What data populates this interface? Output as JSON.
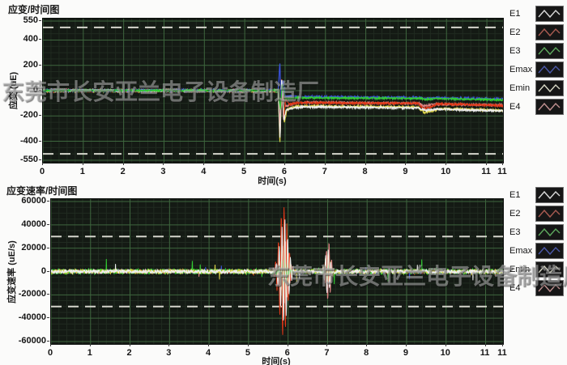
{
  "watermark": {
    "text": "东莞市长安亚兰电子设备制造厂"
  },
  "colors": {
    "page_bg": "#fbfbfa",
    "plot_bg": "#141a14",
    "grid_major": "#3e663e",
    "grid_minor": "#202b20",
    "ref_line": "#d5d5cc",
    "tick_text": "#161616"
  },
  "legend": {
    "items": [
      {
        "label": "E1",
        "color": "#d9d9d9"
      },
      {
        "label": "E2",
        "color": "#a85a50"
      },
      {
        "label": "E3",
        "color": "#5da85d"
      },
      {
        "label": "Emax",
        "color": "#4a58a8"
      },
      {
        "label": "Emin",
        "color": "#d6d6c4"
      },
      {
        "label": "E4",
        "color": "#c09090"
      }
    ]
  },
  "chart_data": [
    {
      "type": "line",
      "title": "应变/时间图",
      "xlabel": "时间(s)",
      "ylabel": "应变 (uE)",
      "xlim": [
        0,
        11.4
      ],
      "ylim": [
        -550,
        550
      ],
      "xticks": [
        0,
        1,
        2,
        3,
        4,
        5,
        6,
        7,
        8,
        9,
        10,
        11
      ],
      "edge_tick_label": "11",
      "yticks": [
        550,
        400,
        200,
        0,
        -200,
        -400,
        -550
      ],
      "x_minor_step": 0.2,
      "y_minor_step": 50,
      "ref_lines": [
        500,
        -500
      ],
      "grid": true,
      "legend_position": "right",
      "series": [
        {
          "name": "Emin",
          "color": "#d8d048",
          "noise": 9,
          "keypoints": [
            [
              0,
              -2
            ],
            [
              5.83,
              -2
            ],
            [
              5.87,
              -430
            ],
            [
              5.92,
              60
            ],
            [
              5.98,
              -255
            ],
            [
              6.05,
              -150
            ],
            [
              6.3,
              -122
            ],
            [
              8,
              -126
            ],
            [
              9.3,
              -132
            ],
            [
              9.45,
              -172
            ],
            [
              9.65,
              -158
            ],
            [
              9.85,
              -142
            ],
            [
              11.4,
              -157
            ]
          ]
        },
        {
          "name": "E4",
          "color": "#dc8282",
          "noise": 8,
          "keypoints": [
            [
              0,
              0
            ],
            [
              5.83,
              0
            ],
            [
              5.88,
              -250
            ],
            [
              5.93,
              30
            ],
            [
              6.0,
              -125
            ],
            [
              6.3,
              -92
            ],
            [
              8,
              -97
            ],
            [
              9.3,
              -100
            ],
            [
              9.45,
              -122
            ],
            [
              9.7,
              -106
            ],
            [
              11.4,
              -114
            ]
          ]
        },
        {
          "name": "E2",
          "color": "#e03818",
          "noise": 8,
          "keypoints": [
            [
              0,
              0
            ],
            [
              5.83,
              0
            ],
            [
              5.875,
              -380
            ],
            [
              5.91,
              100
            ],
            [
              5.96,
              -230
            ],
            [
              6.02,
              -70
            ],
            [
              6.1,
              -108
            ],
            [
              6.3,
              -95
            ],
            [
              8,
              -99
            ],
            [
              9.3,
              -101
            ],
            [
              9.42,
              -142
            ],
            [
              9.6,
              -133
            ],
            [
              9.78,
              -104
            ],
            [
              11.4,
              -119
            ]
          ]
        },
        {
          "name": "E1",
          "color": "#ededed",
          "noise": 8,
          "keypoints": [
            [
              0,
              0
            ],
            [
              5.83,
              0
            ],
            [
              5.875,
              -400
            ],
            [
              5.915,
              120
            ],
            [
              5.965,
              -240
            ],
            [
              6.03,
              -152
            ],
            [
              6.2,
              -136
            ],
            [
              6.5,
              -129
            ],
            [
              8,
              -133
            ],
            [
              9.3,
              -139
            ],
            [
              9.5,
              -156
            ],
            [
              9.75,
              -146
            ],
            [
              11.4,
              -161
            ]
          ]
        },
        {
          "name": "Emax",
          "color": "#3a52da",
          "noise": 9,
          "keypoints": [
            [
              0,
              2
            ],
            [
              5.83,
              2
            ],
            [
              5.87,
              235
            ],
            [
              5.9,
              -80
            ],
            [
              5.95,
              85
            ],
            [
              6.0,
              -42
            ],
            [
              6.3,
              -49
            ],
            [
              8,
              -53
            ],
            [
              9.3,
              -56
            ],
            [
              9.5,
              -62
            ],
            [
              9.7,
              -58
            ],
            [
              11.4,
              -67
            ]
          ]
        },
        {
          "name": "E3",
          "color": "#32cc32",
          "noise": 7,
          "keypoints": [
            [
              0,
              1
            ],
            [
              5.83,
              1
            ],
            [
              5.88,
              -150
            ],
            [
              5.93,
              55
            ],
            [
              6.0,
              -62
            ],
            [
              6.3,
              -56
            ],
            [
              8,
              -59
            ],
            [
              9.3,
              -61
            ],
            [
              9.5,
              -69
            ],
            [
              9.7,
              -63
            ],
            [
              11.4,
              -73
            ]
          ]
        }
      ]
    },
    {
      "type": "line",
      "title": "应变速率/时间图",
      "xlabel": "时间(s)",
      "ylabel": "应变速率 (uE/s)",
      "xlim": [
        0,
        11.44
      ],
      "ylim": [
        -60000,
        60000
      ],
      "xticks": [
        0,
        1,
        2,
        3,
        4,
        5,
        6,
        7,
        8,
        9,
        10,
        11
      ],
      "edge_tick_label": "11",
      "yticks": [
        60000,
        40000,
        20000,
        0,
        -20000,
        -40000,
        -60000
      ],
      "x_minor_step": 0.2,
      "y_minor_step": 5000,
      "ref_lines": [
        30000,
        -30000
      ],
      "grid": true,
      "legend_position": "right",
      "series": [
        {
          "name": "Emax",
          "color": "#3a52da",
          "noise": 1600,
          "spike_prob": 0.004,
          "keypoints": [
            [
              0,
              0
            ],
            [
              11.44,
              0
            ]
          ],
          "bursts": [
            [
              5.9,
              20000,
              0.07,
              16
            ],
            [
              7.0,
              8000,
              0.05,
              16
            ]
          ]
        },
        {
          "name": "E4",
          "color": "#dc8282",
          "noise": 1300,
          "spike_prob": 0.004,
          "keypoints": [
            [
              0,
              0
            ],
            [
              11.44,
              0
            ]
          ],
          "bursts": [
            [
              5.93,
              28000,
              0.08,
              15
            ],
            [
              7.02,
              26000,
              0.06,
              15
            ]
          ]
        },
        {
          "name": "E2",
          "color": "#e03818",
          "noise": 1100,
          "spike_prob": 0.003,
          "keypoints": [
            [
              0,
              0
            ],
            [
              11.44,
              0
            ]
          ],
          "bursts": [
            [
              5.88,
              56000,
              0.1,
              14
            ],
            [
              6.99,
              15000,
              0.05,
              15
            ]
          ]
        },
        {
          "name": "E3",
          "color": "#32cc32",
          "noise": 2500,
          "spike_prob": 0.008,
          "keypoints": [
            [
              0,
              0
            ],
            [
              11.44,
              0
            ]
          ],
          "bursts": [
            [
              5.9,
              12000,
              0.07,
              16
            ],
            [
              7.0,
              6000,
              0.05,
              16
            ]
          ]
        },
        {
          "name": "Emin",
          "color": "#d8d048",
          "noise": 2000,
          "spike_prob": 0.005,
          "keypoints": [
            [
              0,
              0
            ],
            [
              11.44,
              0
            ]
          ],
          "bursts": [
            [
              5.9,
              35000,
              0.09,
              14
            ],
            [
              7.0,
              18000,
              0.06,
              15
            ]
          ]
        },
        {
          "name": "E1",
          "color": "#ededed",
          "noise": 1700,
          "spike_prob": 0.005,
          "keypoints": [
            [
              0,
              0
            ],
            [
              11.44,
              0
            ]
          ],
          "bursts": [
            [
              5.9,
              45000,
              0.1,
              14
            ],
            [
              7.0,
              20000,
              0.06,
              15
            ]
          ]
        }
      ]
    }
  ]
}
